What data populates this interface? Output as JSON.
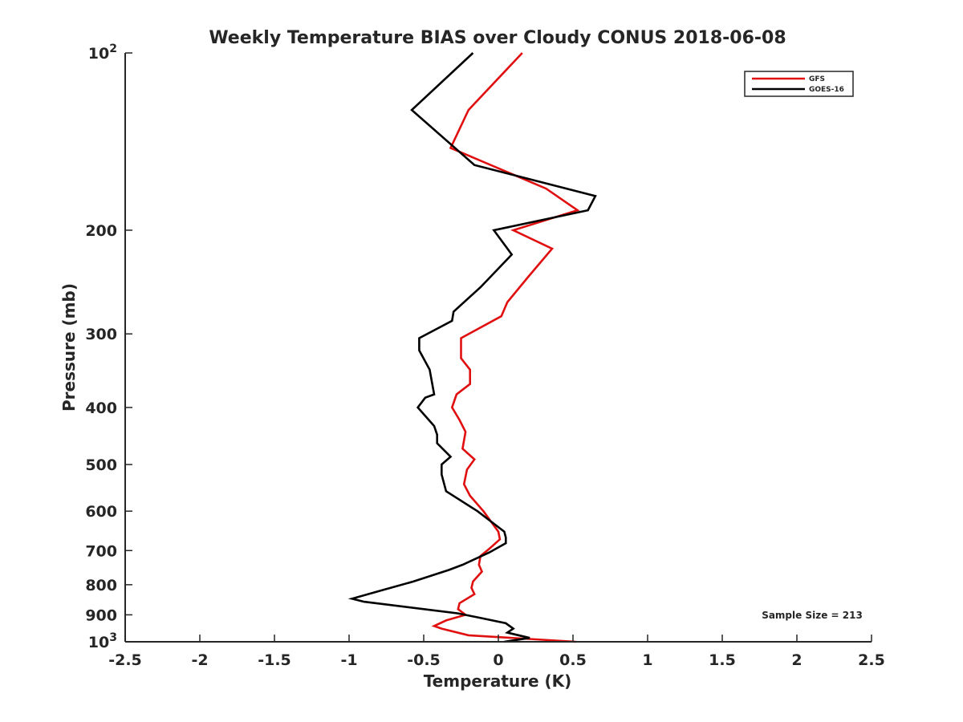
{
  "chart_data": {
    "type": "line",
    "title": "Weekly Temperature BIAS over Cloudy CONUS 2018-06-08",
    "xlabel": "Temperature (K)",
    "ylabel": "Pressure (mb)",
    "xlim": [
      -2.5,
      2.5
    ],
    "ylim": [
      1000,
      100
    ],
    "yscale": "log",
    "x_ticks": [
      {
        "value": -2.5,
        "label": "-2.5"
      },
      {
        "value": -2,
        "label": "-2"
      },
      {
        "value": -1.5,
        "label": "-1.5"
      },
      {
        "value": -1,
        "label": "-1"
      },
      {
        "value": -0.5,
        "label": "-0.5"
      },
      {
        "value": 0,
        "label": "0"
      },
      {
        "value": 0.5,
        "label": "0.5"
      },
      {
        "value": 1,
        "label": "1"
      },
      {
        "value": 1.5,
        "label": "1.5"
      },
      {
        "value": 2,
        "label": "2"
      },
      {
        "value": 2.5,
        "label": "2.5"
      }
    ],
    "y_ticks": [
      {
        "value": 100,
        "label": "10",
        "sup": "2"
      },
      {
        "value": 200,
        "label": "200"
      },
      {
        "value": 300,
        "label": "300"
      },
      {
        "value": 400,
        "label": "400"
      },
      {
        "value": 500,
        "label": "500"
      },
      {
        "value": 600,
        "label": "600"
      },
      {
        "value": 700,
        "label": "700"
      },
      {
        "value": 800,
        "label": "800"
      },
      {
        "value": 900,
        "label": "900"
      },
      {
        "value": 1000,
        "label": "10",
        "sup": "3"
      }
    ],
    "legend_position": "top-right",
    "series": [
      {
        "name": "GFS",
        "color": "#e01010",
        "points": [
          [
            0.16,
            100
          ],
          [
            -0.2,
            125
          ],
          [
            -0.32,
            145
          ],
          [
            0.32,
            170
          ],
          [
            0.53,
            185
          ],
          [
            0.1,
            200
          ],
          [
            0.36,
            215
          ],
          [
            0.2,
            240
          ],
          [
            0.06,
            265
          ],
          [
            0.02,
            280
          ],
          [
            -0.25,
            305
          ],
          [
            -0.25,
            330
          ],
          [
            -0.19,
            345
          ],
          [
            -0.19,
            365
          ],
          [
            -0.28,
            380
          ],
          [
            -0.31,
            400
          ],
          [
            -0.26,
            420
          ],
          [
            -0.22,
            440
          ],
          [
            -0.24,
            470
          ],
          [
            -0.16,
            490
          ],
          [
            -0.21,
            510
          ],
          [
            -0.23,
            540
          ],
          [
            -0.19,
            565
          ],
          [
            -0.1,
            600
          ],
          [
            0.0,
            650
          ],
          [
            0.01,
            670
          ],
          [
            -0.06,
            695
          ],
          [
            -0.12,
            715
          ],
          [
            -0.13,
            740
          ],
          [
            -0.11,
            760
          ],
          [
            -0.17,
            790
          ],
          [
            -0.18,
            810
          ],
          [
            -0.16,
            830
          ],
          [
            -0.26,
            860
          ],
          [
            -0.27,
            880
          ],
          [
            -0.22,
            900
          ],
          [
            -0.35,
            920
          ],
          [
            -0.43,
            940
          ],
          [
            -0.38,
            950
          ],
          [
            -0.2,
            975
          ],
          [
            0.52,
            1000
          ]
        ]
      },
      {
        "name": "GOES-16",
        "color": "#000000",
        "points": [
          [
            -0.17,
            100
          ],
          [
            -0.58,
            125
          ],
          [
            -0.16,
            155
          ],
          [
            0.65,
            175
          ],
          [
            0.6,
            185
          ],
          [
            -0.03,
            200
          ],
          [
            0.09,
            220
          ],
          [
            -0.12,
            250
          ],
          [
            -0.3,
            275
          ],
          [
            -0.31,
            285
          ],
          [
            -0.53,
            305
          ],
          [
            -0.53,
            320
          ],
          [
            -0.46,
            345
          ],
          [
            -0.43,
            380
          ],
          [
            -0.49,
            385
          ],
          [
            -0.54,
            400
          ],
          [
            -0.43,
            430
          ],
          [
            -0.41,
            445
          ],
          [
            -0.41,
            460
          ],
          [
            -0.32,
            485
          ],
          [
            -0.38,
            500
          ],
          [
            -0.38,
            520
          ],
          [
            -0.35,
            555
          ],
          [
            -0.14,
            600
          ],
          [
            0.04,
            650
          ],
          [
            0.05,
            665
          ],
          [
            0.05,
            680
          ],
          [
            -0.06,
            705
          ],
          [
            -0.24,
            740
          ],
          [
            -0.33,
            755
          ],
          [
            -0.57,
            790
          ],
          [
            -0.76,
            815
          ],
          [
            -0.98,
            845
          ],
          [
            -0.9,
            855
          ],
          [
            -0.27,
            895
          ],
          [
            -0.13,
            910
          ],
          [
            0.05,
            930
          ],
          [
            0.1,
            950
          ],
          [
            0.06,
            965
          ],
          [
            0.21,
            985
          ],
          [
            0.04,
            1000
          ]
        ]
      }
    ],
    "annotations": [
      {
        "text": "Sample Size = 213",
        "position": "lower-right"
      }
    ]
  }
}
